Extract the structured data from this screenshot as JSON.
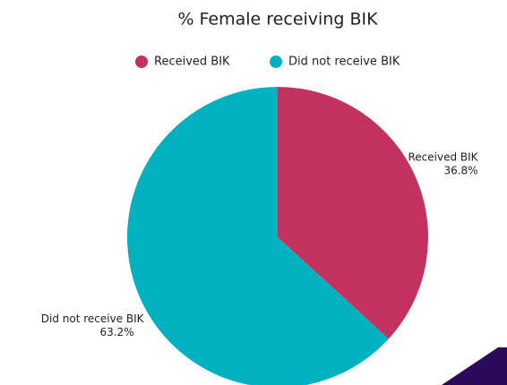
{
  "chart_data": {
    "type": "pie",
    "title": "% Female receiving BIK",
    "categories": [
      "Received BIK",
      "Did not receive BIK"
    ],
    "values": [
      36.8,
      63.2
    ],
    "value_labels": [
      "36.8%",
      "63.2%"
    ],
    "colors": [
      "#c3325f",
      "#00b2c0"
    ],
    "legend": "top"
  }
}
